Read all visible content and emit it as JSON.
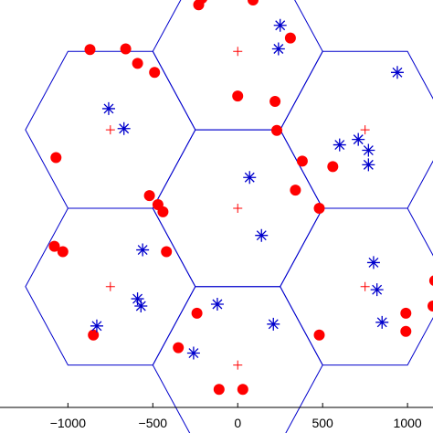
{
  "chart_data": {
    "type": "scatter",
    "xlim": [
      -1400,
      1150
    ],
    "ylim": [
      -1100,
      1150
    ],
    "x_ticks": [
      -1000,
      -500,
      0,
      500,
      1000
    ],
    "x_tick_labels": [
      "−1000",
      "−500",
      "0",
      "500",
      "1000"
    ],
    "grid": false,
    "colors": {
      "hexagon": "#0000cc",
      "red": "#ff0000",
      "star": "#0000cc"
    },
    "hexagon_cells": {
      "radius": 500,
      "centers": [
        [
          0,
          866
        ],
        [
          0,
          0
        ],
        [
          0,
          -866
        ],
        [
          -750,
          433
        ],
        [
          -750,
          -433
        ],
        [
          750,
          433
        ],
        [
          750,
          -433
        ]
      ]
    },
    "series": [
      {
        "marker": "plus",
        "color": "#ff0000",
        "points": [
          [
            0,
            866
          ],
          [
            0,
            0
          ],
          [
            0,
            -866
          ],
          [
            -750,
            433
          ],
          [
            -750,
            -433
          ],
          [
            750,
            433
          ],
          [
            750,
            -433
          ]
        ]
      },
      {
        "marker": "circle",
        "color": "#ff0000",
        "points": [
          [
            -230,
            1124
          ],
          [
            -210,
            1160
          ],
          [
            90,
            1150
          ],
          [
            310,
            940
          ],
          [
            -870,
            876
          ],
          [
            -660,
            880
          ],
          [
            -590,
            800
          ],
          [
            -490,
            750
          ],
          [
            0,
            620
          ],
          [
            220,
            590
          ],
          [
            230,
            430
          ],
          [
            380,
            260
          ],
          [
            -1070,
            280
          ],
          [
            -520,
            70
          ],
          [
            -470,
            20
          ],
          [
            -440,
            -20
          ],
          [
            340,
            100
          ],
          [
            480,
            0
          ],
          [
            560,
            230
          ],
          [
            -1080,
            -210
          ],
          [
            -1030,
            -240
          ],
          [
            -420,
            -240
          ],
          [
            -850,
            -700
          ],
          [
            -350,
            -770
          ],
          [
            -240,
            -580
          ],
          [
            480,
            -700
          ],
          [
            -110,
            -1000
          ],
          [
            30,
            -1000
          ],
          [
            990,
            -580
          ],
          [
            990,
            -680
          ],
          [
            1150,
            -540
          ],
          [
            1160,
            -400
          ]
        ]
      },
      {
        "marker": "star",
        "color": "#0000cc",
        "points": [
          [
            250,
            1010
          ],
          [
            240,
            880
          ],
          [
            940,
            750
          ],
          [
            -760,
            550
          ],
          [
            -670,
            440
          ],
          [
            70,
            170
          ],
          [
            600,
            350
          ],
          [
            710,
            380
          ],
          [
            770,
            320
          ],
          [
            770,
            240
          ],
          [
            140,
            -150
          ],
          [
            -560,
            -230
          ],
          [
            -590,
            -500
          ],
          [
            -570,
            -540
          ],
          [
            -830,
            -650
          ],
          [
            210,
            -640
          ],
          [
            -120,
            -530
          ],
          [
            -260,
            -800
          ],
          [
            800,
            -300
          ],
          [
            820,
            -450
          ],
          [
            850,
            -630
          ]
        ]
      }
    ]
  }
}
